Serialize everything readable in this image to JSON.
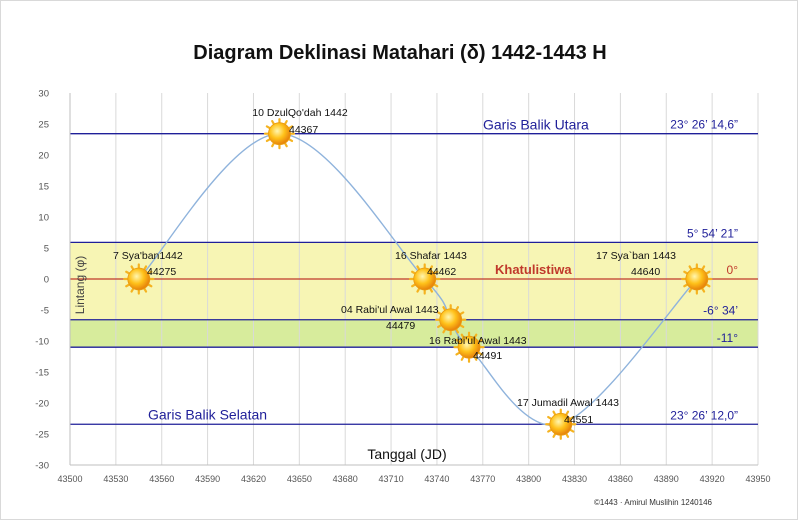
{
  "chart_data": {
    "type": "line",
    "title": "Diagram Deklinasi Matahari (δ) 1442-1443 H",
    "xlabel": "Tanggal (JD)",
    "ylabel": "Lintang (φ)",
    "xlim": [
      43500,
      43950
    ],
    "ylim": [
      -30,
      30
    ],
    "x_ticks": [
      43500,
      43530,
      43560,
      43590,
      43620,
      43650,
      43680,
      43710,
      43740,
      43770,
      43800,
      43830,
      43860,
      43890,
      43920,
      43950
    ],
    "y_ticks": [
      -30,
      -25,
      -20,
      -15,
      -10,
      -5,
      0,
      5,
      10,
      15,
      20,
      25,
      30
    ],
    "grid": "vertical",
    "series": [
      {
        "values": []
      }
    ],
    "points": [
      {
        "x": 44275,
        "plot_x": 43545,
        "y": 0.0,
        "label": "7 Sya'ban1442",
        "jd": "44275"
      },
      {
        "x": 44367,
        "plot_x": 43637,
        "y": 23.44,
        "label": "10 DzulQo'dah 1442",
        "jd": "44367"
      },
      {
        "x": 44462,
        "plot_x": 43732,
        "y": 0.0,
        "label": "16 Shafar 1443",
        "jd": "44462"
      },
      {
        "x": 44479,
        "plot_x": 43749,
        "y": -6.57,
        "label": "04 Rabi'ul Awal 1443",
        "jd": "44479"
      },
      {
        "x": 44491,
        "plot_x": 43761,
        "y": -11.0,
        "label": "16 Rabi'ul Awal 1443",
        "jd": "44491"
      },
      {
        "x": 44551,
        "plot_x": 43821,
        "y": -23.43,
        "label": "17 Jumadil Awal 1443",
        "jd": "44551"
      },
      {
        "x": 44640,
        "plot_x": 43910,
        "y": 0.0,
        "label": "17 Sya`ban 1443",
        "jd": "44640"
      }
    ],
    "reference_lines": [
      {
        "y": 23.44,
        "name": "Garis Balik Utara",
        "value": "23° 26’ 14,6”",
        "color": "#1f1f99"
      },
      {
        "y": 5.91,
        "name": "",
        "value": "5° 54’ 21”",
        "color": "#1f1f99"
      },
      {
        "y": 0,
        "name": "Khatulistiwa",
        "value": "0°",
        "color": "#c0392b"
      },
      {
        "y": -6.57,
        "name": "",
        "value": "-6° 34’",
        "color": "#1f1f99"
      },
      {
        "y": -11,
        "name": "",
        "value": "-11°",
        "color": "#1f1f99"
      },
      {
        "y": -23.43,
        "name": "Garis Balik Selatan",
        "value": "23° 26’ 12,0”",
        "color": "#1f1f99"
      }
    ],
    "bands": [
      {
        "from": 5.91,
        "to": -6.57,
        "color": "#f7f5b4"
      },
      {
        "from": -6.57,
        "to": -11,
        "color": "#d7ec9c"
      }
    ],
    "colors": {
      "curve": "#8fb3dc",
      "axis": "#bfbfbf",
      "sun": "#f5a623"
    }
  },
  "credit": "©1443 · Amirul Muslihin 1240146"
}
